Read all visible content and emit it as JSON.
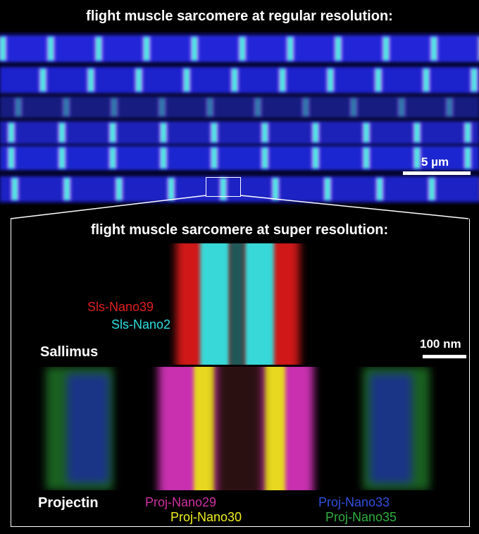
{
  "top_panel": {
    "title": "flight muscle sarcomere at regular resolution:",
    "scale_bar_label": "5 µm",
    "colors": {
      "background": "#1a22c8",
      "magenta": "#e044ff",
      "cyan": "#40f0d8"
    }
  },
  "bottom_panel": {
    "title": "flight muscle sarcomere at super resolution:",
    "scale_bar_label": "100 nm",
    "sallimus": {
      "name": "Sallimus",
      "labels": [
        {
          "text": "Sls-Nano39",
          "color": "#e02020"
        },
        {
          "text": "Sls-Nano2",
          "color": "#30e0e0"
        }
      ]
    },
    "projectin": {
      "name": "Projectin",
      "labels": [
        {
          "text": "Proj-Nano29",
          "color": "#d030a0"
        },
        {
          "text": "Proj-Nano30",
          "color": "#f0f020"
        },
        {
          "text": "Proj-Nano33",
          "color": "#3050e0"
        },
        {
          "text": "Proj-Nano35",
          "color": "#30b040"
        }
      ]
    }
  }
}
